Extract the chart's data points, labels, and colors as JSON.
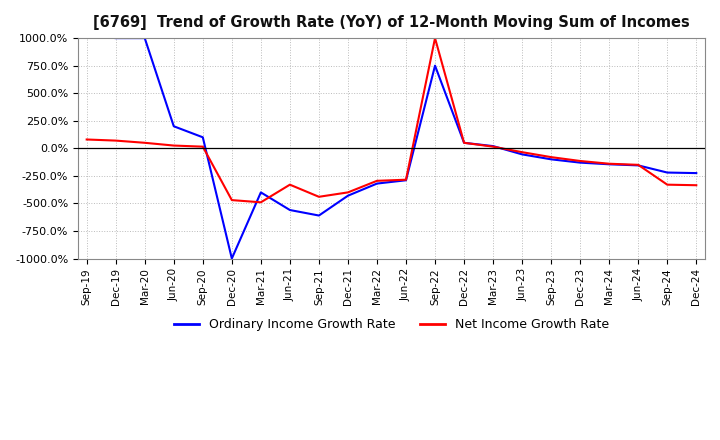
{
  "title": "[6769]  Trend of Growth Rate (YoY) of 12-Month Moving Sum of Incomes",
  "ylim": [
    -1000,
    1000
  ],
  "yticks": [
    -1000,
    -750,
    -500,
    -250,
    0,
    250,
    500,
    750,
    1000
  ],
  "ytick_labels": [
    "-1000.0%",
    "-750.0%",
    "-500.0%",
    "-250.0%",
    "0.0%",
    "250.0%",
    "500.0%",
    "750.0%",
    "1000.0%"
  ],
  "ordinary_color": "#0000FF",
  "net_color": "#FF0000",
  "background_color": "#FFFFFF",
  "grid_color": "#BBBBBB",
  "legend_ordinary": "Ordinary Income Growth Rate",
  "legend_net": "Net Income Growth Rate",
  "x_labels": [
    "Sep-19",
    "Dec-19",
    "Mar-20",
    "Jun-20",
    "Sep-20",
    "Dec-20",
    "Mar-21",
    "Jun-21",
    "Sep-21",
    "Dec-21",
    "Mar-22",
    "Jun-22",
    "Sep-22",
    "Dec-22",
    "Mar-23",
    "Jun-23",
    "Sep-23",
    "Dec-23",
    "Mar-24",
    "Jun-24",
    "Sep-24",
    "Dec-24"
  ],
  "ordinary_y": [
    null,
    1000,
    1000,
    200,
    100,
    -1000,
    -400,
    -560,
    -610,
    -430,
    -320,
    -290,
    750,
    50,
    20,
    -55,
    -100,
    -130,
    -145,
    -155,
    -220,
    -225
  ],
  "net_y": [
    80,
    70,
    50,
    25,
    15,
    -470,
    -490,
    -330,
    -440,
    -400,
    -295,
    -285,
    1000,
    50,
    15,
    -35,
    -80,
    -115,
    -140,
    -150,
    -330,
    -335
  ]
}
